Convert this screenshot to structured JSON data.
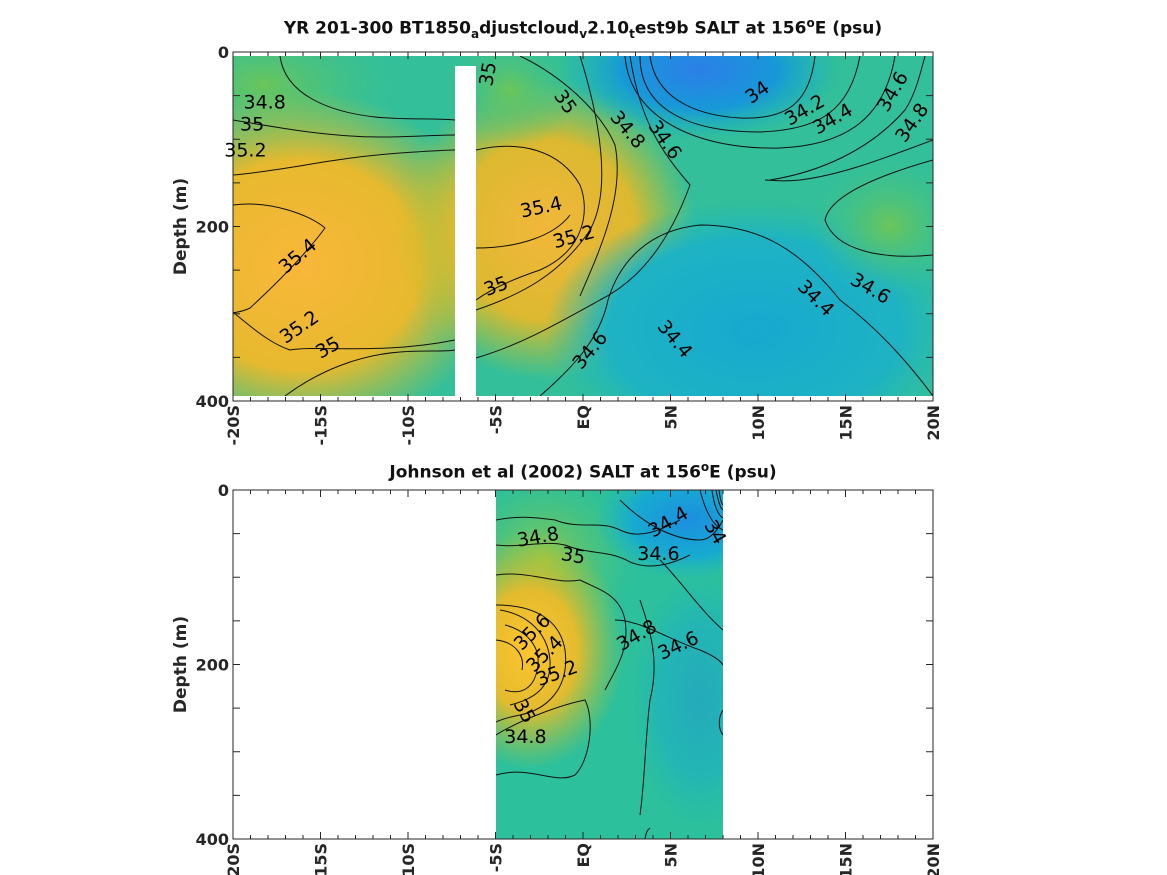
{
  "chart_data": [
    {
      "type": "contour",
      "title_parts": {
        "t1": "YR 201-300 BT1850",
        "s1": "a",
        "t2": "djustcloud",
        "s2": "v",
        "t3": "2.10",
        "s3": "t",
        "t4": "est9b SALT at 156",
        "sup": "o",
        "t5": "E (psu)"
      },
      "ylabel": "Depth (m)",
      "xlim": [
        -20,
        20
      ],
      "ylim": [
        0,
        400
      ],
      "yticks": [
        "0",
        "200",
        "400"
      ],
      "xticks": [
        "-20S",
        "-15S",
        "-10S",
        "-5S",
        "EQ",
        "5N",
        "10N",
        "15N",
        "20N"
      ],
      "colormap": "parula",
      "contour_labels": [
        {
          "text": "34.8",
          "lat": -19.4,
          "depth": 65,
          "rot": 0
        },
        {
          "text": "35",
          "lat": -19.6,
          "depth": 90,
          "rot": 0
        },
        {
          "text": "35.2",
          "lat": -20.5,
          "depth": 120,
          "rot": 0
        },
        {
          "text": "35.4",
          "lat": -17.0,
          "depth": 255,
          "rot": -40
        },
        {
          "text": "35.2",
          "lat": -17.0,
          "depth": 335,
          "rot": -35
        },
        {
          "text": "35",
          "lat": -15.0,
          "depth": 352,
          "rot": -30
        },
        {
          "text": "35",
          "lat": -5.2,
          "depth": 40,
          "rot": -80
        },
        {
          "text": "35",
          "lat": -1.7,
          "depth": 50,
          "rot": 55
        },
        {
          "text": "34.8",
          "lat": 1.5,
          "depth": 75,
          "rot": 50
        },
        {
          "text": "34.6",
          "lat": 3.7,
          "depth": 85,
          "rot": 55
        },
        {
          "text": "35.4",
          "lat": -3.5,
          "depth": 190,
          "rot": -12
        },
        {
          "text": "35.2",
          "lat": -1.6,
          "depth": 225,
          "rot": -15
        },
        {
          "text": "35",
          "lat": -5.5,
          "depth": 280,
          "rot": -20
        },
        {
          "text": "34.6",
          "lat": -0.1,
          "depth": 365,
          "rot": -50
        },
        {
          "text": "34",
          "lat": 9.6,
          "depth": 60,
          "rot": -35
        },
        {
          "text": "34.2",
          "lat": 11.8,
          "depth": 85,
          "rot": -30
        },
        {
          "text": "34.4",
          "lat": 13.4,
          "depth": 95,
          "rot": -30
        },
        {
          "text": "34.6",
          "lat": 17.4,
          "depth": 70,
          "rot": -60
        },
        {
          "text": "34.8",
          "lat": 18.4,
          "depth": 105,
          "rot": -55
        },
        {
          "text": "34.4",
          "lat": 12.2,
          "depth": 270,
          "rot": 45
        },
        {
          "text": "34.6",
          "lat": 15.2,
          "depth": 265,
          "rot": 30
        },
        {
          "text": "34.4",
          "lat": 4.2,
          "depth": 315,
          "rot": 50
        }
      ]
    },
    {
      "type": "contour",
      "title_parts": {
        "t1": "Johnson et al (2002) SALT at 156",
        "sup": "o",
        "t2": "E (psu)"
      },
      "ylabel": "Depth (m)",
      "xlim": [
        -20,
        20
      ],
      "ylim": [
        0,
        400
      ],
      "data_lat_range": [
        -5,
        8
      ],
      "yticks": [
        "0",
        "200",
        "400"
      ],
      "xticks": [
        "-20S",
        "-15S",
        "-10S",
        "-5S",
        "EQ",
        "5N",
        "10N",
        "15N",
        "20N"
      ],
      "colormap": "parula",
      "contour_labels": [
        {
          "text": "34.8",
          "lat": -3.7,
          "depth": 65,
          "rot": -10
        },
        {
          "text": "35",
          "lat": -1.3,
          "depth": 80,
          "rot": 10
        },
        {
          "text": "34.4",
          "lat": 4.0,
          "depth": 55,
          "rot": -30
        },
        {
          "text": "34.6",
          "lat": 3.1,
          "depth": 80,
          "rot": 0
        },
        {
          "text": "34",
          "lat": 6.9,
          "depth": 40,
          "rot": 60
        },
        {
          "text": "35.6",
          "lat": -3.5,
          "depth": 185,
          "rot": -45
        },
        {
          "text": "35.4",
          "lat": -2.8,
          "depth": 210,
          "rot": -45
        },
        {
          "text": "35.2",
          "lat": -2.5,
          "depth": 225,
          "rot": -20
        },
        {
          "text": "35",
          "lat": -4.0,
          "depth": 245,
          "rot": 60
        },
        {
          "text": "34.8",
          "lat": 2.2,
          "depth": 185,
          "rot": -30
        },
        {
          "text": "34.6",
          "lat": 4.5,
          "depth": 195,
          "rot": -25
        },
        {
          "text": "34.8",
          "lat": -4.5,
          "depth": 290,
          "rot": 0
        }
      ]
    }
  ]
}
